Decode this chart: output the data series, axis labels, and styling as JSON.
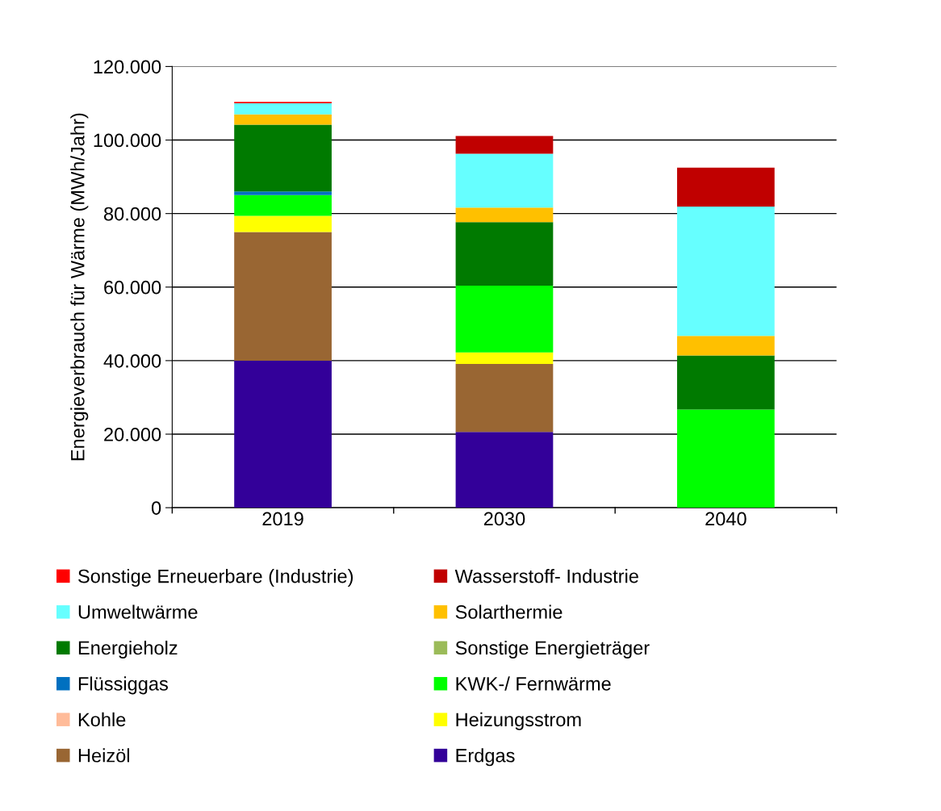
{
  "chart_data": {
    "type": "bar",
    "stacked": true,
    "ylabel": "Energieverbrauch für Wärme (MWh/Jahr)",
    "categories": [
      "2019",
      "2030",
      "2040"
    ],
    "series": [
      {
        "name": "Erdgas",
        "color": "#330099",
        "values": [
          40000,
          20600,
          0
        ]
      },
      {
        "name": "Heizöl",
        "color": "#996633",
        "values": [
          35000,
          18500,
          0
        ]
      },
      {
        "name": "Heizungsstrom",
        "color": "#ffff00",
        "values": [
          4400,
          3100,
          0
        ]
      },
      {
        "name": "Kohle",
        "color": "#ffbb99",
        "values": [
          0,
          0,
          0
        ]
      },
      {
        "name": "KWK-/ Fernwärme",
        "color": "#00ff00",
        "values": [
          5600,
          18200,
          26700
        ]
      },
      {
        "name": "Flüssiggas",
        "color": "#0070c0",
        "values": [
          1000,
          0,
          0
        ]
      },
      {
        "name": "Sonstige Energieträger",
        "color": "#9bbb59",
        "values": [
          0,
          0,
          0
        ]
      },
      {
        "name": "Energieholz",
        "color": "#007a00",
        "values": [
          18200,
          17300,
          14700
        ]
      },
      {
        "name": "Solarthermie",
        "color": "#ffc000",
        "values": [
          2800,
          3900,
          5300
        ]
      },
      {
        "name": "Umweltwärme",
        "color": "#66ffff",
        "values": [
          3000,
          14700,
          35200
        ]
      },
      {
        "name": "Wasserstoff- Industrie",
        "color": "#c00000",
        "values": [
          0,
          4800,
          10600
        ]
      },
      {
        "name": "Sonstige Erneuerbare (Industrie)",
        "color": "#ff0000",
        "values": [
          400,
          0,
          0
        ]
      }
    ],
    "ylim": [
      0,
      120000
    ],
    "yticks": [
      {
        "value": 0,
        "label": "0"
      },
      {
        "value": 20000,
        "label": "20.000"
      },
      {
        "value": 40000,
        "label": "40.000"
      },
      {
        "value": 60000,
        "label": "60.000"
      },
      {
        "value": 80000,
        "label": "80.000"
      },
      {
        "value": 100000,
        "label": "100.000"
      },
      {
        "value": 120000,
        "label": "120.000"
      }
    ],
    "grid": "y",
    "legend": "bottom"
  }
}
